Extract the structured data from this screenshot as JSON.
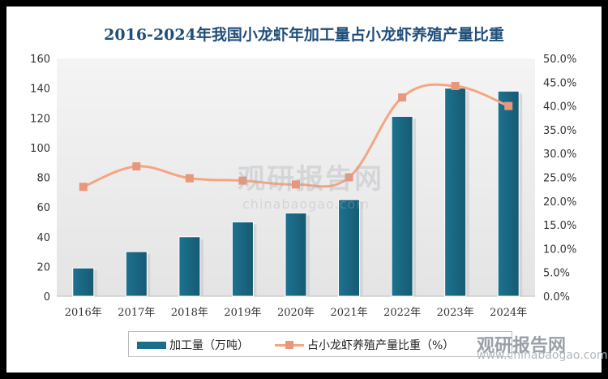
{
  "chart_data": {
    "type": "bar",
    "title": "2016-2024年我国小龙虾年加工量占小龙虾养殖产量比重",
    "categories": [
      "2016年",
      "2017年",
      "2018年",
      "2019年",
      "2020年",
      "2021年",
      "2022年",
      "2023年",
      "2024年"
    ],
    "series": [
      {
        "name": "加工量（万吨）",
        "type": "bar",
        "axis": "left",
        "color": "#1b6e8a",
        "values": [
          19,
          30,
          40,
          50,
          56,
          65,
          121,
          140,
          138
        ]
      },
      {
        "name": "占小龙虾养殖产量比重（%）",
        "type": "line",
        "axis": "right",
        "color": "#f4a582",
        "values": [
          23.0,
          27.3,
          24.8,
          24.3,
          23.5,
          25.0,
          41.8,
          44.2,
          40.0
        ]
      }
    ],
    "ylim_left": [
      0,
      160
    ],
    "yticks_left": [
      "0",
      "20",
      "40",
      "60",
      "80",
      "100",
      "120",
      "140",
      "160"
    ],
    "ylim_right": [
      0,
      50
    ],
    "yticks_right": [
      "0.0%",
      "5.0%",
      "10.0%",
      "15.0%",
      "20.0%",
      "25.0%",
      "30.0%",
      "35.0%",
      "40.0%",
      "45.0%",
      "50.0%"
    ],
    "legend_position": "bottom",
    "grid": false
  },
  "watermark": {
    "logo": "观研报告网",
    "url": "www.chinabaogao.com",
    "center_url": "chinabaogao.com"
  }
}
